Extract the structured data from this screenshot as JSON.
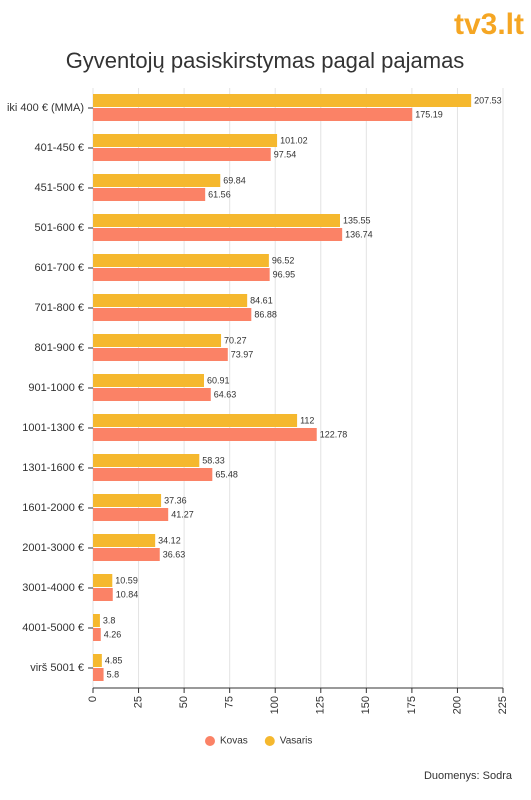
{
  "logo": "tv3.lt",
  "chart_data": {
    "type": "hbar",
    "title": "Gyventojų pasiskirstymas pagal pajamas",
    "categories": [
      "iki 400 € (MMA)",
      "401-450 €",
      "451-500 €",
      "501-600 €",
      "601-700 €",
      "701-800 €",
      "801-900 €",
      "901-1000 €",
      "1001-1300 €",
      "1301-1600 €",
      "1601-2000 €",
      "2001-3000 €",
      "3001-4000 €",
      "4001-5000 €",
      "virš 5001 €"
    ],
    "series": [
      {
        "name": "Kovas",
        "color": "#fb8266",
        "values": [
          175.19,
          97.54,
          61.56,
          136.74,
          96.95,
          86.88,
          73.97,
          64.63,
          122.78,
          65.48,
          41.27,
          36.63,
          10.84,
          4.26,
          5.8
        ]
      },
      {
        "name": "Vasaris",
        "color": "#f5b82e",
        "values": [
          207.53,
          101.02,
          69.84,
          135.55,
          96.52,
          84.61,
          70.27,
          60.91,
          112,
          58.33,
          37.36,
          34.12,
          10.59,
          3.8,
          4.85
        ]
      }
    ],
    "xlim": [
      0,
      225
    ],
    "xticks": [
      0,
      25,
      50,
      75,
      100,
      125,
      150,
      175,
      200,
      225
    ],
    "grid": true,
    "source": "Duomenys: Sodra"
  }
}
